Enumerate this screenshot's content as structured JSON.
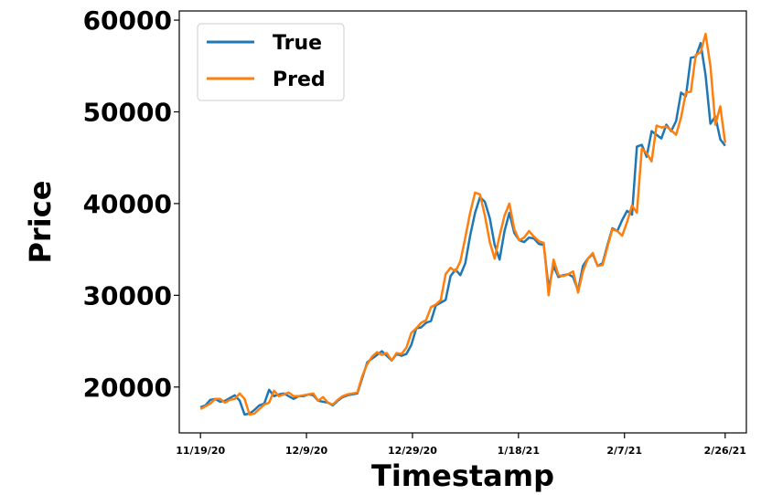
{
  "chart_data": {
    "type": "line",
    "xlabel": "Timestamp",
    "ylabel": "Price",
    "x_tick_labels": [
      "11/19/20",
      "12/9/20",
      "12/29/20",
      "1/18/21",
      "2/7/21",
      "2/26/21"
    ],
    "x_tick_days": [
      0,
      20,
      40,
      60,
      80,
      99
    ],
    "x_range_days": [
      -4,
      103
    ],
    "x_start_date": "11/19/20",
    "y_ticks": [
      20000,
      30000,
      40000,
      50000,
      60000
    ],
    "ylim": [
      15000,
      61000
    ],
    "grid": false,
    "legend_position": "upper left",
    "colors": {
      "True": "#1f77b4",
      "Pred": "#ff7f0e"
    },
    "series": [
      {
        "name": "True",
        "values": [
          17800,
          18000,
          18600,
          18700,
          18400,
          18500,
          18800,
          19100,
          18500,
          17000,
          17100,
          17500,
          18000,
          18200,
          19700,
          19000,
          19200,
          19300,
          19000,
          18700,
          19000,
          19000,
          19200,
          19100,
          18500,
          18400,
          18300,
          18000,
          18500,
          18900,
          19100,
          19200,
          19300,
          21000,
          22700,
          23100,
          23500,
          23900,
          23400,
          22900,
          23600,
          23400,
          23600,
          24600,
          26400,
          26500,
          27000,
          27200,
          28900,
          29200,
          29500,
          32100,
          32800,
          32200,
          33500,
          36500,
          39000,
          40700,
          40200,
          38400,
          35500,
          33900,
          37000,
          39000,
          36800,
          36000,
          35800,
          36300,
          36200,
          35600,
          35500,
          30800,
          33200,
          32000,
          32200,
          32300,
          32000,
          30500,
          33200,
          34000,
          34500,
          33200,
          33500,
          35500,
          37300,
          37000,
          38200,
          39200,
          38800,
          46200,
          46400,
          45100,
          47900,
          47500,
          47100,
          48600,
          47900,
          49000,
          52100,
          51700,
          55900,
          56000,
          57500,
          54000,
          48700,
          49500,
          47000,
          46300
        ]
      },
      {
        "name": "Pred",
        "values": [
          17600,
          17900,
          18200,
          18700,
          18700,
          18300,
          18600,
          18700,
          19300,
          18700,
          17000,
          17100,
          17600,
          18100,
          18300,
          19600,
          19000,
          19200,
          19400,
          19000,
          19000,
          19100,
          19200,
          19300,
          18500,
          18900,
          18300,
          18100,
          18600,
          19000,
          19200,
          19300,
          19400,
          21200,
          22500,
          23300,
          23800,
          23500,
          23700,
          22900,
          23700,
          23600,
          24300,
          25900,
          26400,
          27000,
          27300,
          28700,
          29000,
          29500,
          32300,
          33000,
          32600,
          33700,
          36300,
          39000,
          41200,
          41000,
          38700,
          35800,
          34000,
          36500,
          38700,
          40000,
          37200,
          36000,
          36300,
          37000,
          36400,
          35900,
          35700,
          30000,
          33900,
          32200,
          32100,
          32300,
          32600,
          30300,
          32600,
          34000,
          34600,
          33200,
          33300,
          35300,
          37200,
          37000,
          36500,
          38000,
          39800,
          39000,
          46000,
          45500,
          44600,
          48500,
          48300,
          48400,
          48000,
          47500,
          49400,
          52100,
          52200,
          56200,
          56500,
          58500,
          55000,
          48600,
          50600,
          46600
        ]
      }
    ]
  }
}
